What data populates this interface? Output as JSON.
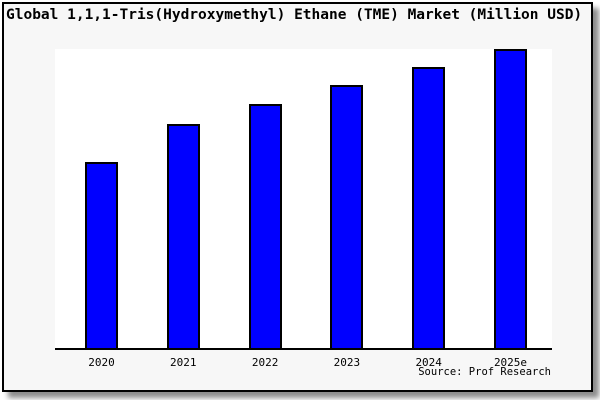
{
  "chart_data": {
    "type": "bar",
    "title": "Global 1,1,1-Tris(Hydroxymethyl) Ethane (TME) Market (Million USD)",
    "categories": [
      "2020",
      "2021",
      "2022",
      "2023",
      "2024",
      "2025e"
    ],
    "values": [
      62.2,
      74.9,
      81.6,
      87.8,
      94.1,
      100
    ],
    "values_note": "Y-axis is unlabeled in the source image; values are bar heights relative to the 2025e bar = 100",
    "source": "Source: Prof Research",
    "bar_color": "#0000ff",
    "bar_border_color": "#000000",
    "background_color": "#f7f7f7",
    "plot_background_color": "#ffffff",
    "grid": false,
    "legend": false,
    "y_axis_labels": false,
    "x_axis_line": true
  }
}
